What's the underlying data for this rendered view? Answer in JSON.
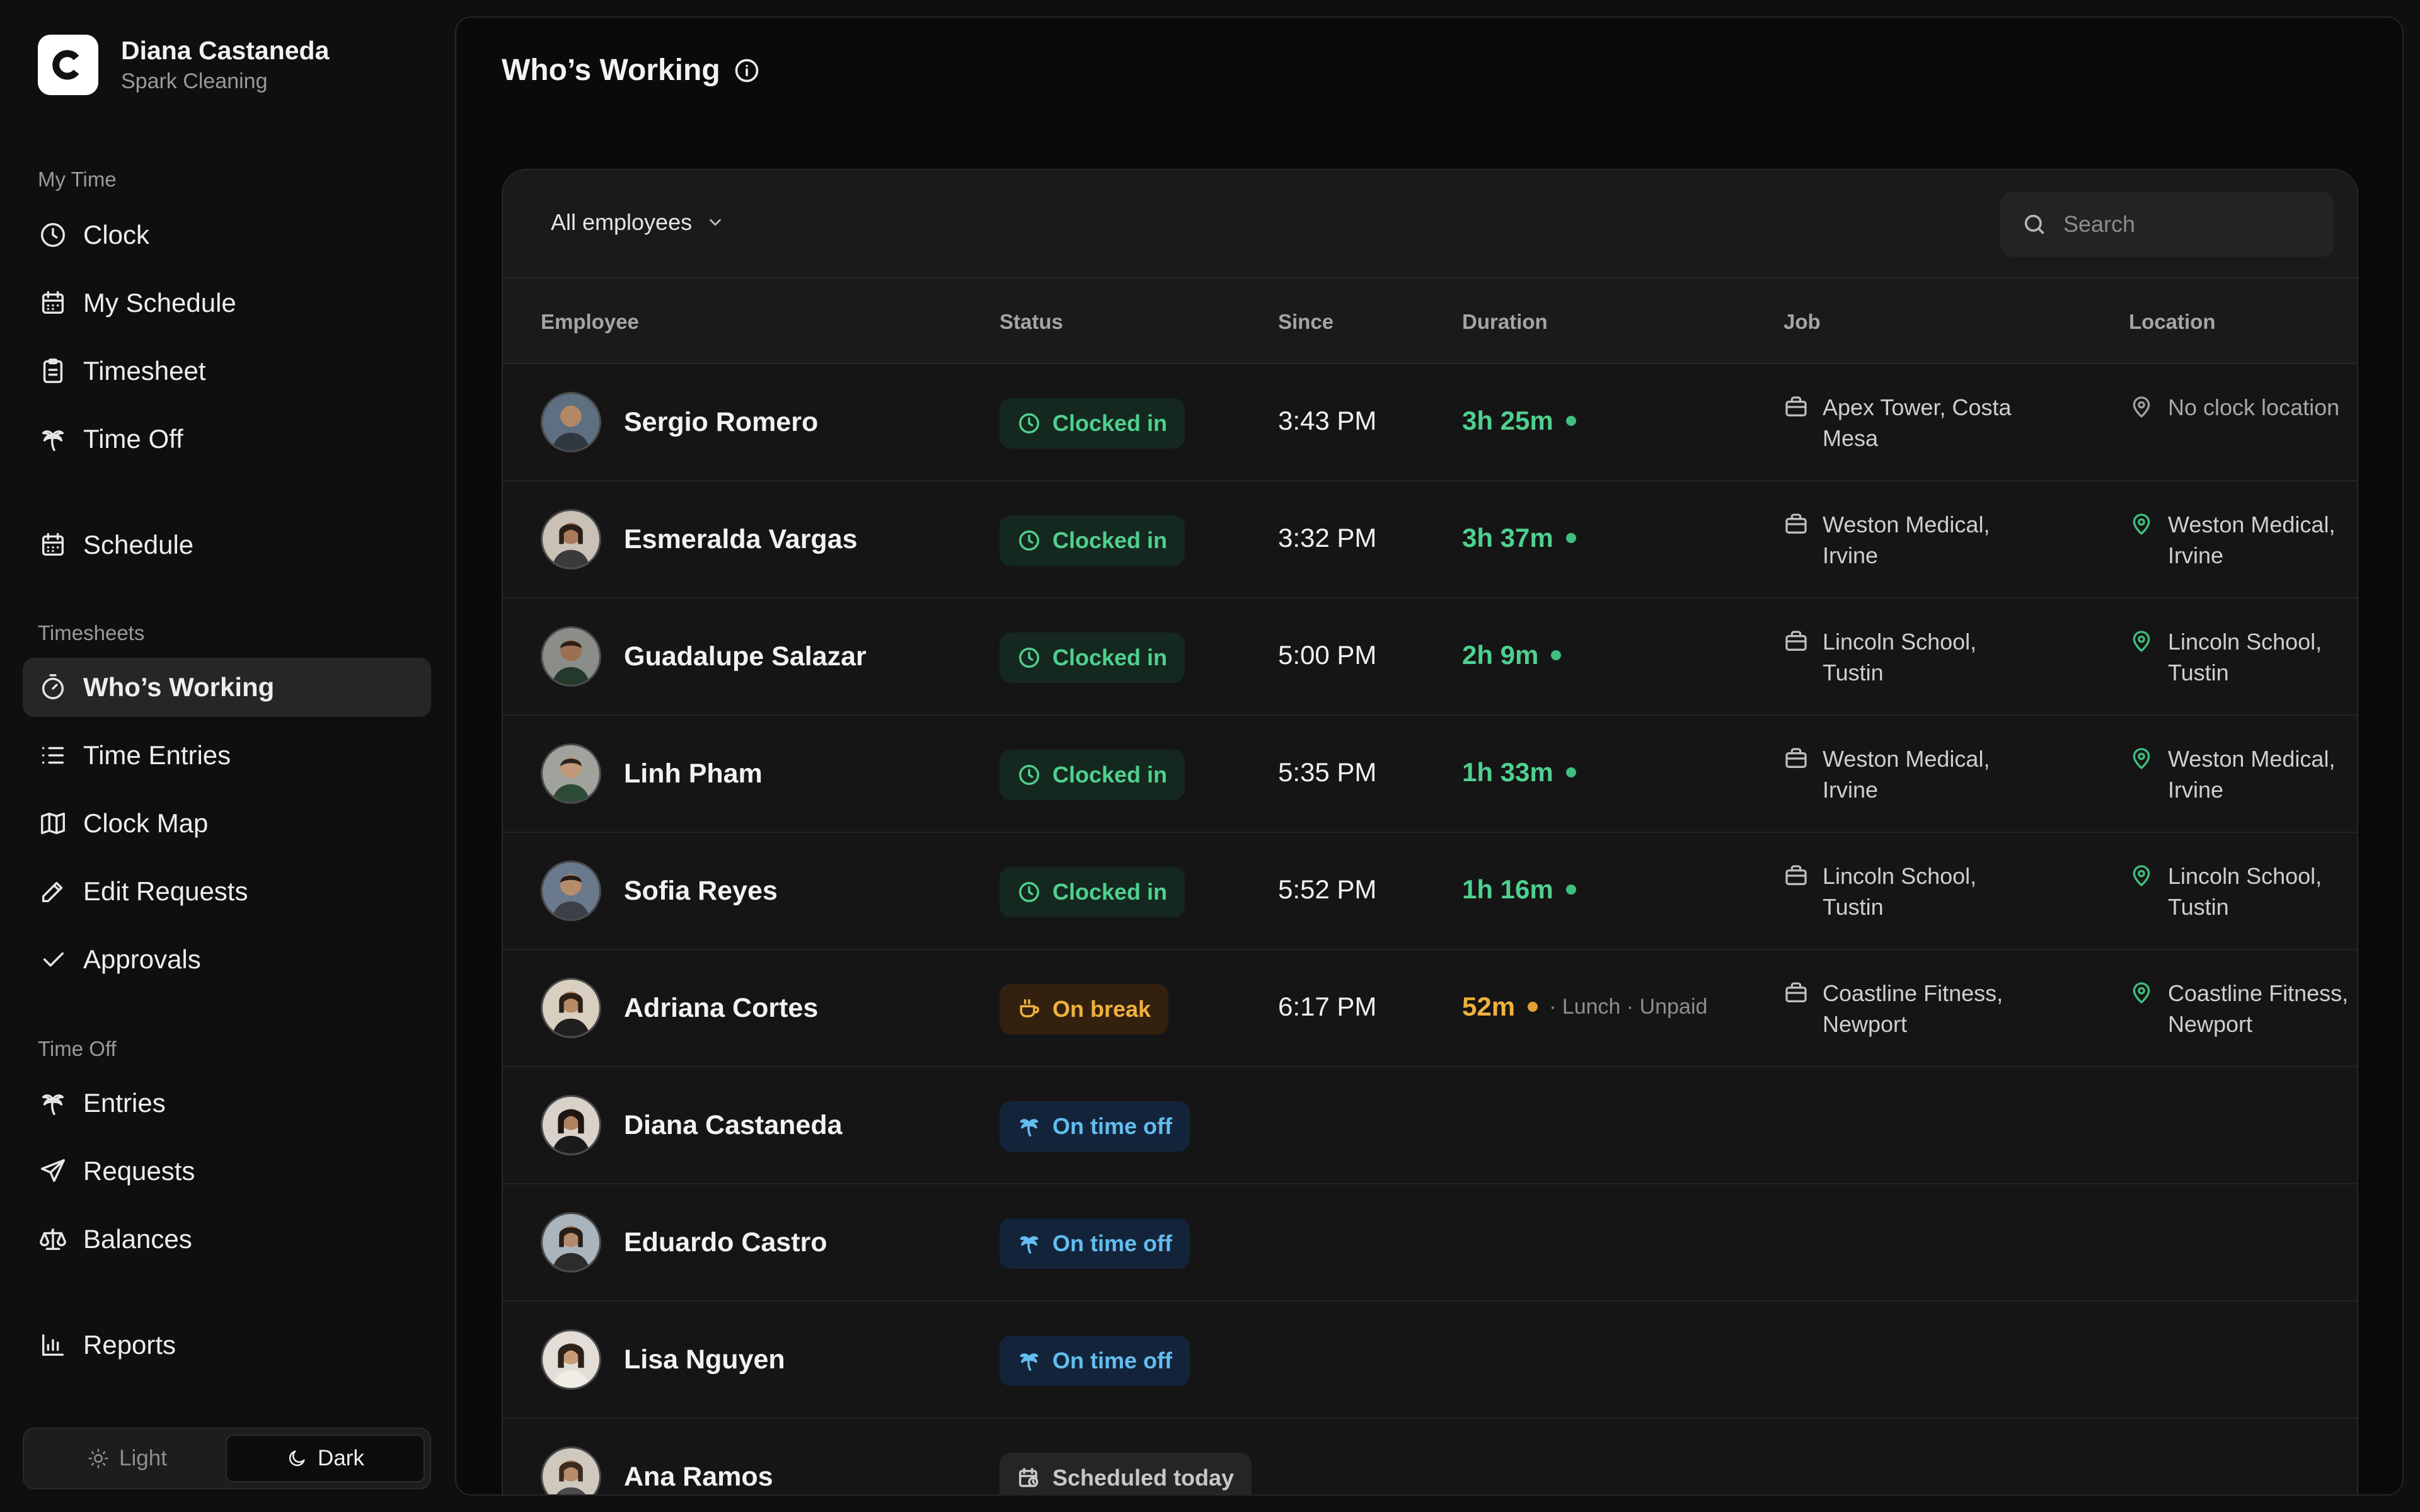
{
  "user": {
    "name": "Diana Castaneda",
    "org": "Spark Cleaning",
    "logo_letter": "C"
  },
  "nav": {
    "my_time_label": "My Time",
    "clock": "Clock",
    "my_schedule": "My Schedule",
    "timesheet": "Timesheet",
    "time_off": "Time Off",
    "schedule": "Schedule",
    "timesheets_label": "Timesheets",
    "whos_working": "Who’s Working",
    "time_entries": "Time Entries",
    "clock_map": "Clock Map",
    "edit_requests": "Edit Requests",
    "approvals": "Approvals",
    "time_off_label": "Time Off",
    "entries": "Entries",
    "requests": "Requests",
    "balances": "Balances",
    "reports": "Reports"
  },
  "theme": {
    "light": "Light",
    "dark": "Dark",
    "selected": "Dark"
  },
  "page": {
    "title": "Who’s Working"
  },
  "toolbar": {
    "filter": "All employees",
    "search_placeholder": "Search"
  },
  "columns": {
    "employee": "Employee",
    "status": "Status",
    "since": "Since",
    "duration": "Duration",
    "job": "Job",
    "location": "Location"
  },
  "rows": [
    {
      "name": "Sergio Romero",
      "status": "Clocked in",
      "since": "3:43 PM",
      "duration": "3h 25m",
      "job": [
        "Apex Tower, Costa",
        "Mesa"
      ],
      "location": [
        "No clock location"
      ]
    },
    {
      "name": "Esmeralda Vargas",
      "status": "Clocked in",
      "since": "3:32 PM",
      "duration": "3h 37m",
      "job": [
        "Weston Medical,",
        "Irvine"
      ],
      "location": [
        "Weston Medical,",
        "Irvine"
      ]
    },
    {
      "name": "Guadalupe Salazar",
      "status": "Clocked in",
      "since": "5:00 PM",
      "duration": "2h 9m",
      "job": [
        "Lincoln School,",
        "Tustin"
      ],
      "location": [
        "Lincoln School,",
        "Tustin"
      ]
    },
    {
      "name": "Linh Pham",
      "status": "Clocked in",
      "since": "5:35 PM",
      "duration": "1h 33m",
      "job": [
        "Weston Medical,",
        "Irvine"
      ],
      "location": [
        "Weston Medical,",
        "Irvine"
      ]
    },
    {
      "name": "Sofia Reyes",
      "status": "Clocked in",
      "since": "5:52 PM",
      "duration": "1h 16m",
      "job": [
        "Lincoln School,",
        "Tustin"
      ],
      "location": [
        "Lincoln School,",
        "Tustin"
      ]
    },
    {
      "name": "Adriana Cortes",
      "status": "On break",
      "since": "6:17 PM",
      "duration": "52m",
      "duration_note": "· Lunch · Unpaid",
      "job": [
        "Coastline Fitness,",
        "Newport"
      ],
      "location": [
        "Coastline Fitness,",
        "Newport"
      ]
    },
    {
      "name": "Diana Castaneda",
      "status": "On time off"
    },
    {
      "name": "Eduardo Castro",
      "status": "On time off"
    },
    {
      "name": "Lisa Nguyen",
      "status": "On time off"
    },
    {
      "name": "Ana Ramos",
      "status": "Scheduled today"
    }
  ],
  "colors": {
    "clocked_in": "#4fd08f",
    "on_break": "#f0b23c",
    "time_off": "#63bdf0",
    "active_nav": "#262628"
  }
}
